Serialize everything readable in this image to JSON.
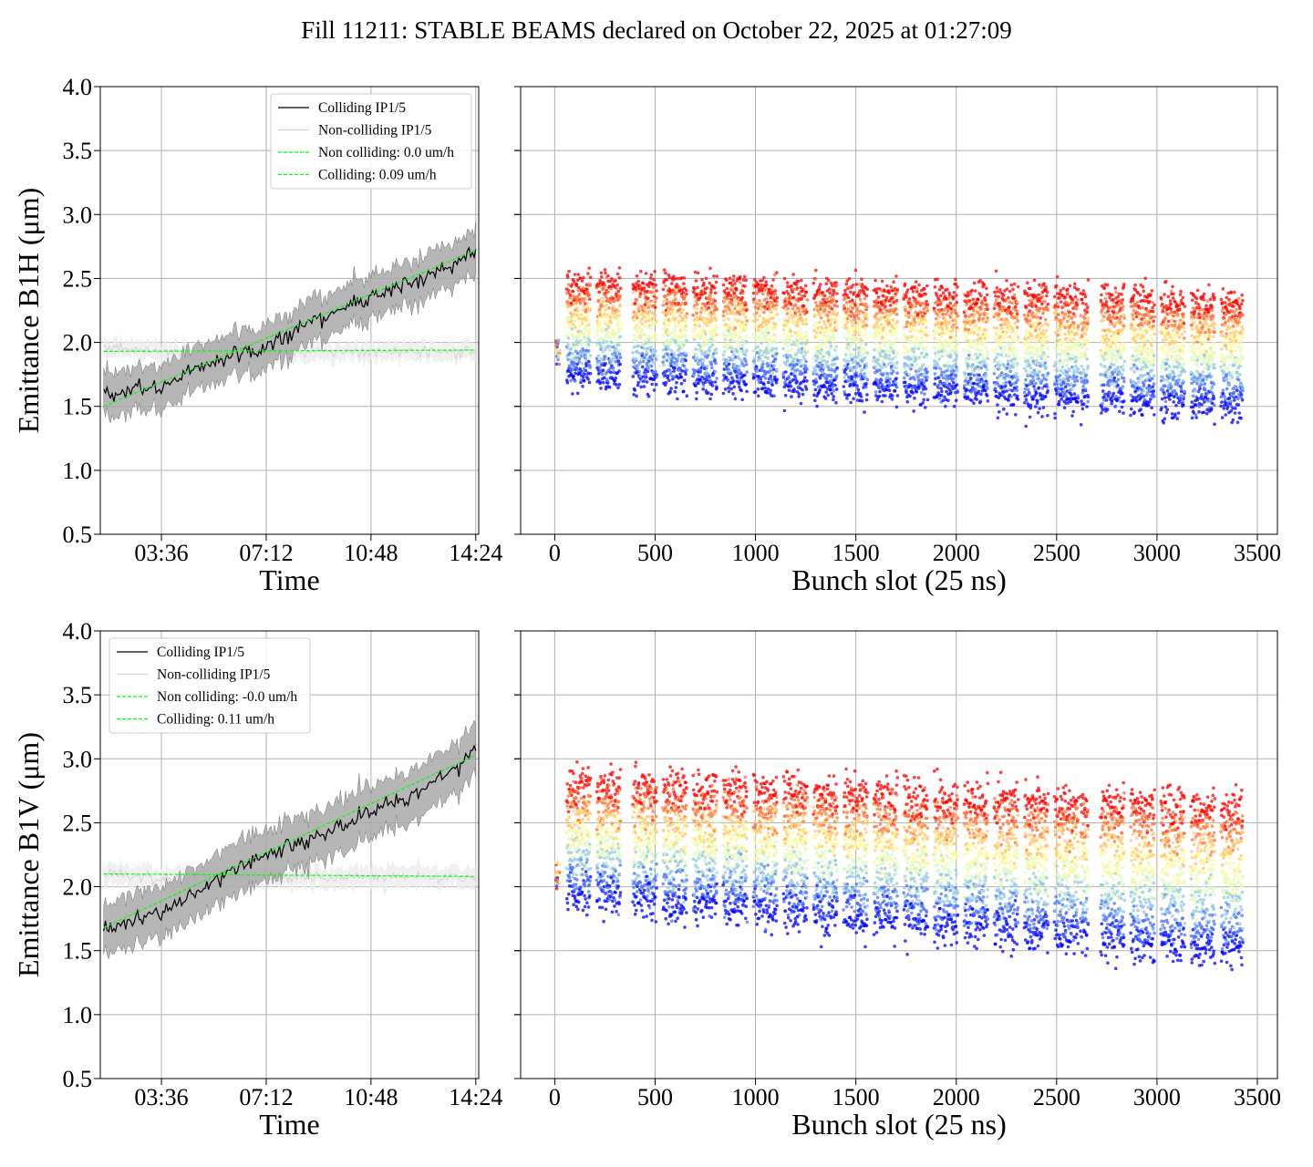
{
  "title": "Fill 11211: STABLE BEAMS declared on October 22, 2025 at 01:27:09",
  "colors": {
    "colliding": "#000000",
    "non_colliding": "#d3d3d3",
    "fit": "#00ff00",
    "band_colliding": "#a9a9a9",
    "band_non_colliding": "#ececec",
    "grid": "#b0b0b0",
    "scatter_colormap": "rainbow"
  },
  "chart_data": [
    {
      "id": "time-h",
      "type": "line",
      "xlabel": "Time",
      "ylabel": "Emittance B1H (μm)",
      "x_range": [
        "01:30",
        "14:30"
      ],
      "xticks": [
        "03:36",
        "07:12",
        "10:48",
        "14:24"
      ],
      "ylim": [
        0.5,
        4.0
      ],
      "yticks": [
        "0.5",
        "1.0",
        "1.5",
        "2.0",
        "2.5",
        "3.0",
        "3.5",
        "4.0"
      ],
      "grid": true,
      "legend_placement": "upper-right",
      "legend": [
        "Colliding IP1/5",
        "Non-colliding IP1/5",
        "Non colliding: 0.0 um/h",
        "Colliding: 0.09 um/h"
      ],
      "series": [
        {
          "name": "Colliding IP1/5",
          "x": [
            "01:37",
            "03:36",
            "05:24",
            "07:12",
            "09:00",
            "10:48",
            "12:36",
            "14:24"
          ],
          "y": [
            1.6,
            1.65,
            1.85,
            1.97,
            2.2,
            2.35,
            2.5,
            2.7
          ],
          "band": 0.17
        },
        {
          "name": "Non-colliding IP1/5",
          "x": [
            "01:37",
            "03:36",
            "05:24",
            "07:12",
            "09:00",
            "10:48",
            "12:36",
            "14:24"
          ],
          "y": [
            1.97,
            1.93,
            1.92,
            1.93,
            1.92,
            1.93,
            1.93,
            1.94
          ],
          "band": 0.07
        },
        {
          "name": "Non colliding: 0.0 um/h",
          "x": [
            "01:37",
            "14:24"
          ],
          "y": [
            1.93,
            1.94
          ]
        },
        {
          "name": "Colliding: 0.09 um/h",
          "x": [
            "01:37",
            "14:24"
          ],
          "y": [
            1.5,
            2.72
          ]
        }
      ]
    },
    {
      "id": "bunch-h",
      "type": "scatter",
      "xlabel": "Bunch slot (25 ns)",
      "ylabel": "",
      "xlim": [
        -170,
        3600
      ],
      "xticks": [
        "0",
        "500",
        "1000",
        "1500",
        "2000",
        "2500",
        "3000",
        "3500"
      ],
      "ylim": [
        0.5,
        4.0
      ],
      "grid": true,
      "trains": [
        [
          60,
          180
        ],
        [
          210,
          330
        ],
        [
          390,
          510
        ],
        [
          540,
          660
        ],
        [
          690,
          810
        ],
        [
          840,
          960
        ],
        [
          990,
          1110
        ],
        [
          1140,
          1260
        ],
        [
          1290,
          1410
        ],
        [
          1440,
          1560
        ],
        [
          1590,
          1710
        ],
        [
          1740,
          1860
        ],
        [
          1890,
          2010
        ],
        [
          2040,
          2160
        ],
        [
          2190,
          2310
        ],
        [
          2340,
          2460
        ],
        [
          2490,
          2610
        ],
        [
          2620,
          2660
        ],
        [
          2720,
          2840
        ],
        [
          2870,
          2990
        ],
        [
          3020,
          3140
        ],
        [
          3170,
          3290
        ],
        [
          3320,
          3430
        ]
      ],
      "pilot": [
        [
          5,
          25
        ],
        1.95
      ],
      "y_low": [
        1.75,
        1.5
      ],
      "y_high": [
        2.45,
        2.3
      ],
      "spread": 0.28
    },
    {
      "id": "time-v",
      "type": "line",
      "xlabel": "Time",
      "ylabel": "Emittance B1V (μm)",
      "x_range": [
        "01:30",
        "14:30"
      ],
      "xticks": [
        "03:36",
        "07:12",
        "10:48",
        "14:24"
      ],
      "ylim": [
        0.5,
        4.0
      ],
      "yticks": [
        "0.5",
        "1.0",
        "1.5",
        "2.0",
        "2.5",
        "3.0",
        "3.5",
        "4.0"
      ],
      "grid": true,
      "legend_placement": "upper-left",
      "legend": [
        "Colliding IP1/5",
        "Non-colliding IP1/5",
        "Non colliding: -0.0 um/h",
        "Colliding: 0.11 um/h"
      ],
      "series": [
        {
          "name": "Colliding IP1/5",
          "x": [
            "01:37",
            "03:36",
            "05:24",
            "07:12",
            "09:00",
            "10:48",
            "12:36",
            "14:24"
          ],
          "y": [
            1.65,
            1.8,
            2.05,
            2.25,
            2.4,
            2.6,
            2.75,
            3.05
          ],
          "band": 0.2
        },
        {
          "name": "Non-colliding IP1/5",
          "x": [
            "01:37",
            "03:36",
            "05:24",
            "07:12",
            "09:00",
            "10:48",
            "12:36",
            "14:24"
          ],
          "y": [
            2.1,
            2.07,
            2.08,
            2.09,
            2.08,
            2.07,
            2.08,
            2.08
          ],
          "band": 0.08
        },
        {
          "name": "Non colliding: -0.0 um/h",
          "x": [
            "01:37",
            "14:24"
          ],
          "y": [
            2.1,
            2.08
          ]
        },
        {
          "name": "Colliding: 0.11 um/h",
          "x": [
            "01:37",
            "14:24"
          ],
          "y": [
            1.68,
            3.03
          ]
        }
      ]
    },
    {
      "id": "bunch-v",
      "type": "scatter",
      "xlabel": "Bunch slot (25 ns)",
      "ylabel": "",
      "xlim": [
        -170,
        3600
      ],
      "xticks": [
        "0",
        "500",
        "1000",
        "1500",
        "2000",
        "2500",
        "3000",
        "3500"
      ],
      "ylim": [
        0.5,
        4.0
      ],
      "grid": true,
      "trains": [
        [
          60,
          180
        ],
        [
          210,
          330
        ],
        [
          390,
          510
        ],
        [
          540,
          660
        ],
        [
          690,
          810
        ],
        [
          840,
          960
        ],
        [
          990,
          1110
        ],
        [
          1140,
          1260
        ],
        [
          1290,
          1410
        ],
        [
          1440,
          1560
        ],
        [
          1590,
          1710
        ],
        [
          1740,
          1860
        ],
        [
          1890,
          2010
        ],
        [
          2040,
          2160
        ],
        [
          2190,
          2310
        ],
        [
          2340,
          2460
        ],
        [
          2490,
          2610
        ],
        [
          2620,
          2660
        ],
        [
          2720,
          2840
        ],
        [
          2870,
          2990
        ],
        [
          3020,
          3140
        ],
        [
          3170,
          3290
        ],
        [
          3320,
          3430
        ]
      ],
      "pilot": [
        [
          5,
          25
        ],
        2.1
      ],
      "y_low": [
        1.95,
        1.5
      ],
      "y_high": [
        2.8,
        2.6
      ],
      "spread": 0.35
    }
  ]
}
